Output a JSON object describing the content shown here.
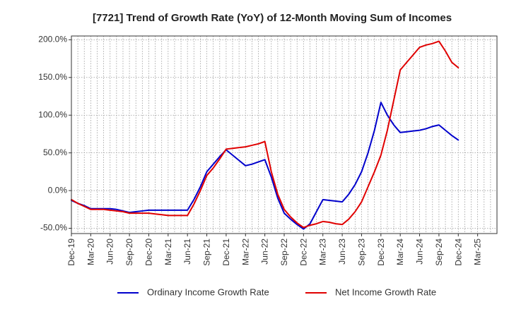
{
  "chart_data": {
    "type": "line",
    "title": "[7721]  Trend of Growth Rate (YoY) of 12-Month Moving Sum of Incomes",
    "xlabel": "",
    "ylabel": "",
    "ylim": [
      -57,
      205
    ],
    "y_ticks": [
      -50,
      0,
      50,
      100,
      150,
      200
    ],
    "y_tick_labels": [
      "-50.0%",
      "0.0%",
      "50.0%",
      "100.0%",
      "150.0%",
      "200.0%"
    ],
    "x_tick_labels": [
      "Dec-19",
      "Mar-20",
      "Jun-20",
      "Sep-20",
      "Dec-20",
      "Mar-21",
      "Jun-21",
      "Sep-21",
      "Dec-21",
      "Mar-22",
      "Jun-22",
      "Sep-22",
      "Dec-22",
      "Mar-23",
      "Jun-23",
      "Sep-23",
      "Dec-23",
      "Mar-24",
      "Jun-24",
      "Sep-24",
      "Dec-24",
      "Mar-25"
    ],
    "x": [
      "Dec-19",
      "Jan-20",
      "Feb-20",
      "Mar-20",
      "Apr-20",
      "May-20",
      "Jun-20",
      "Jul-20",
      "Aug-20",
      "Sep-20",
      "Oct-20",
      "Nov-20",
      "Dec-20",
      "Jan-21",
      "Feb-21",
      "Mar-21",
      "Apr-21",
      "May-21",
      "Jun-21",
      "Jul-21",
      "Aug-21",
      "Sep-21",
      "Oct-21",
      "Nov-21",
      "Dec-21",
      "Jan-22",
      "Feb-22",
      "Mar-22",
      "Apr-22",
      "May-22",
      "Jun-22",
      "Jul-22",
      "Aug-22",
      "Sep-22",
      "Oct-22",
      "Nov-22",
      "Dec-22",
      "Jan-23",
      "Feb-23",
      "Mar-23",
      "Apr-23",
      "May-23",
      "Jun-23",
      "Jul-23",
      "Aug-23",
      "Sep-23",
      "Oct-23",
      "Nov-23",
      "Dec-23",
      "Jan-24",
      "Feb-24",
      "Mar-24",
      "Apr-24",
      "May-24",
      "Jun-24",
      "Jul-24",
      "Aug-24",
      "Sep-24",
      "Oct-24",
      "Nov-24",
      "Dec-24"
    ],
    "series": [
      {
        "name": "Ordinary Income Growth Rate",
        "color": "#0000cc",
        "values": [
          -13,
          -17,
          -20,
          -24,
          -24,
          -24,
          -24,
          -25,
          -27,
          -29,
          -28,
          -27,
          -26,
          -26,
          -26,
          -26,
          -26,
          -26,
          -26,
          -12,
          5,
          25,
          35,
          45,
          54,
          47,
          40,
          33,
          35,
          38,
          41,
          18,
          -10,
          -30,
          -38,
          -45,
          -51,
          -44,
          -28,
          -12,
          -13,
          -14,
          -15,
          -5,
          8,
          25,
          50,
          80,
          117,
          100,
          87,
          77,
          78,
          79,
          80,
          82,
          85,
          87,
          80,
          73,
          67
        ]
      },
      {
        "name": "Net Income Growth Rate",
        "color": "#e00000",
        "values": [
          -12,
          -17,
          -21,
          -25,
          -25,
          -25,
          -26,
          -27,
          -28,
          -30,
          -30,
          -30,
          -30,
          -31,
          -32,
          -33,
          -33,
          -33,
          -33,
          -18,
          0,
          20,
          30,
          42,
          55,
          56,
          57,
          58,
          60,
          62,
          65,
          25,
          -5,
          -25,
          -35,
          -43,
          -49,
          -46,
          -44,
          -41,
          -42,
          -44,
          -45,
          -38,
          -28,
          -15,
          5,
          25,
          47,
          80,
          120,
          160,
          170,
          180,
          190,
          193,
          195,
          198,
          185,
          170,
          163
        ]
      }
    ],
    "legend_position": "bottom",
    "grid": true
  }
}
